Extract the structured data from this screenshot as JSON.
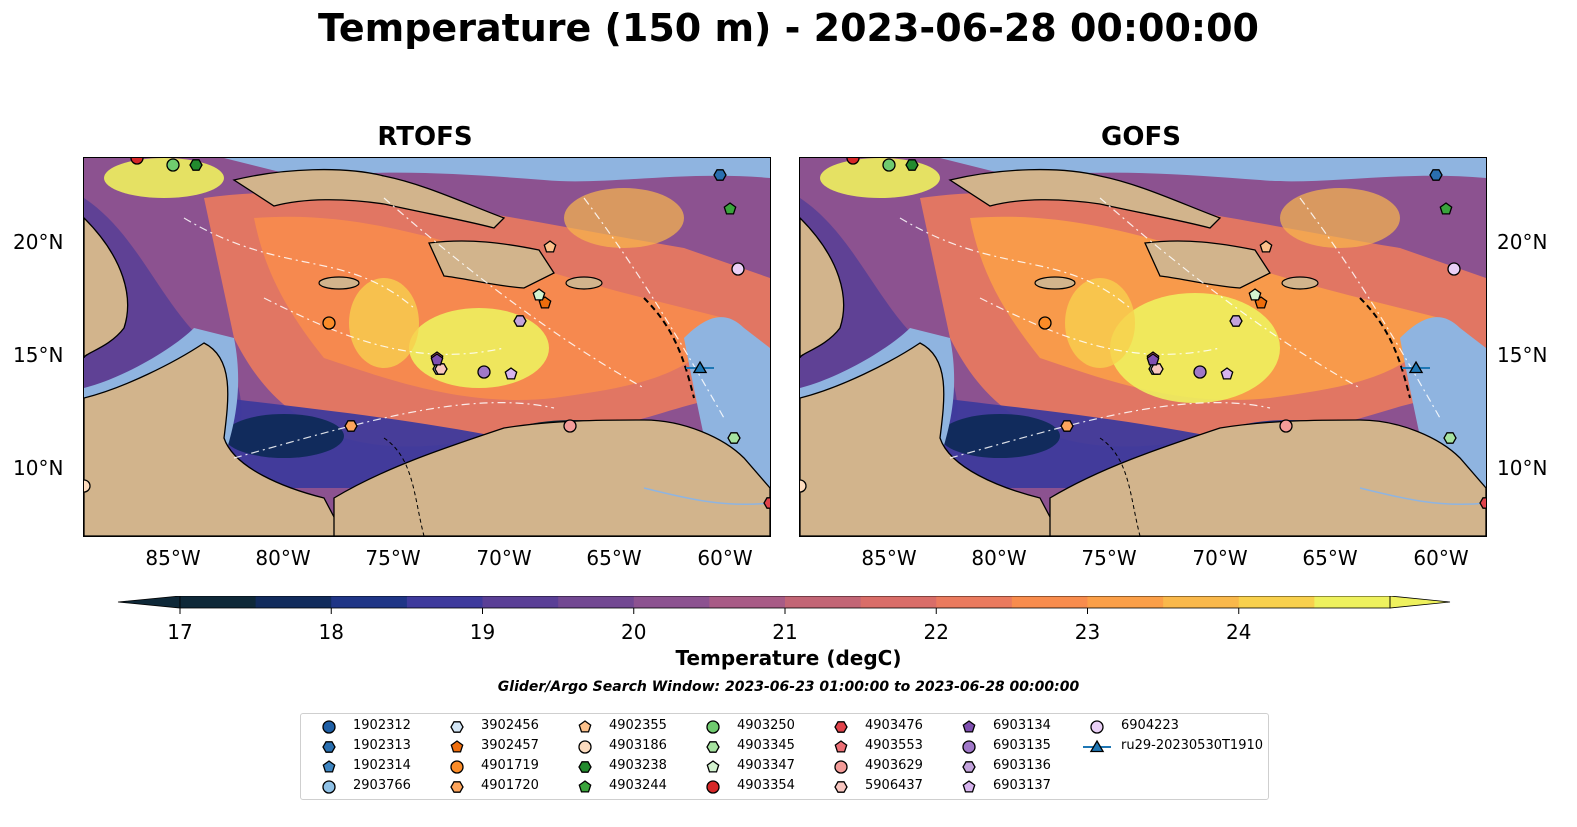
{
  "title": "Temperature (150 m) - 2023-06-28 00:00:00",
  "panels": [
    {
      "title": "RTOFS"
    },
    {
      "title": "GOFS"
    }
  ],
  "axes": {
    "lon_ticks": [
      "85°W",
      "80°W",
      "75°W",
      "70°W",
      "65°W",
      "60°W"
    ],
    "lat_ticks": [
      "20°N",
      "15°N",
      "10°N"
    ]
  },
  "colorbar": {
    "label": "Temperature (degC)",
    "ticks": [
      "17",
      "18",
      "19",
      "20",
      "21",
      "22",
      "23",
      "24"
    ],
    "colors": [
      "#0e2838",
      "#112b5c",
      "#1f3586",
      "#3e3a9c",
      "#5a3f96",
      "#724892",
      "#8c5290",
      "#a85b86",
      "#c26575",
      "#d96d68",
      "#ea7a5e",
      "#f88c4d",
      "#fb9f48",
      "#f9b84b",
      "#f8d04d",
      "#eef15e"
    ],
    "extend": "both"
  },
  "search_window": "Glider/Argo Search Window: 2023-06-23 01:00:00 to 2023-06-28 00:00:00",
  "legend": [
    {
      "label": "1902312",
      "marker": "circle",
      "color": "#1f5fa5"
    },
    {
      "label": "1902313",
      "marker": "hexagon",
      "color": "#2a6fb0"
    },
    {
      "label": "1902314",
      "marker": "pentagon",
      "color": "#3f86c2"
    },
    {
      "label": "2903766",
      "marker": "circle",
      "color": "#8fc1e6"
    },
    {
      "label": "3902456",
      "marker": "hexagon",
      "color": "#d3e6f6"
    },
    {
      "label": "3902457",
      "marker": "pentagon",
      "color": "#ee6d0c"
    },
    {
      "label": "4901719",
      "marker": "circle",
      "color": "#fb8c28"
    },
    {
      "label": "4901720",
      "marker": "hexagon",
      "color": "#fda55c"
    },
    {
      "label": "4902355",
      "marker": "pentagon",
      "color": "#fdc18c"
    },
    {
      "label": "4903186",
      "marker": "circle",
      "color": "#fddcbf"
    },
    {
      "label": "4903238",
      "marker": "hexagon",
      "color": "#238b2e"
    },
    {
      "label": "4903244",
      "marker": "pentagon",
      "color": "#3aa43c"
    },
    {
      "label": "4903250",
      "marker": "circle",
      "color": "#6fcb6f"
    },
    {
      "label": "4903345",
      "marker": "hexagon",
      "color": "#a6e3a0"
    },
    {
      "label": "4903347",
      "marker": "pentagon",
      "color": "#d3f3cf"
    },
    {
      "label": "4903354",
      "marker": "circle",
      "color": "#d62728"
    },
    {
      "label": "4903476",
      "marker": "hexagon",
      "color": "#e0434b"
    },
    {
      "label": "4903553",
      "marker": "pentagon",
      "color": "#ec6f75"
    },
    {
      "label": "4903629",
      "marker": "circle",
      "color": "#f39b98"
    },
    {
      "label": "5906437",
      "marker": "hexagon",
      "color": "#f8c6c0"
    },
    {
      "label": "6903134",
      "marker": "pentagon",
      "color": "#7f4fb0"
    },
    {
      "label": "6903135",
      "marker": "circle",
      "color": "#a078c8"
    },
    {
      "label": "6903136",
      "marker": "hexagon",
      "color": "#c3a3dc"
    },
    {
      "label": "6903137",
      "marker": "pentagon",
      "color": "#d7b4ee"
    },
    {
      "label": "6904223",
      "marker": "circle",
      "color": "#ead0f6"
    },
    {
      "label": "ru29-20230530T1910",
      "marker": "triangle-line",
      "color": "#1f77b4"
    }
  ],
  "map_colors": {
    "land": "#d2b48c",
    "shelf": "#8fb4e0",
    "coast": "#000000"
  }
}
